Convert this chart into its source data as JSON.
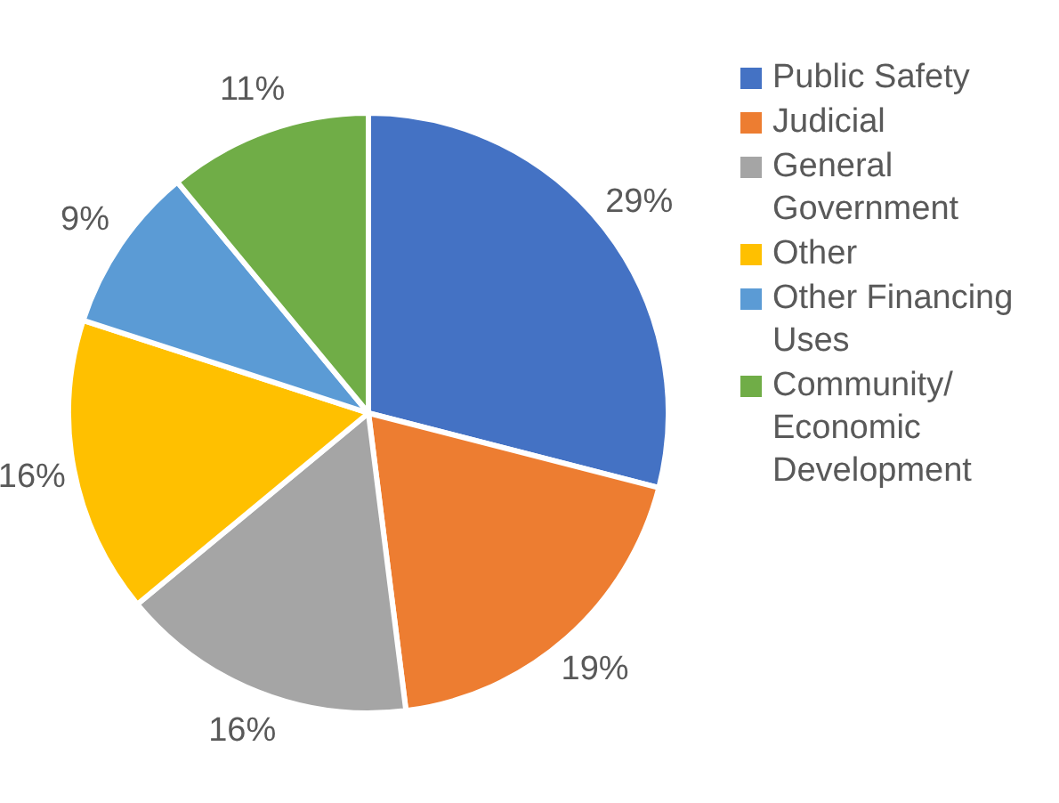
{
  "chart_data": {
    "type": "pie",
    "categories": [
      "Public Safety",
      "Judicial",
      "General Government",
      "Other",
      "Other Financing Uses",
      "Community/ Economic Development"
    ],
    "values": [
      29,
      19,
      16,
      16,
      9,
      11
    ],
    "colors": [
      "#4472c4",
      "#ed7d31",
      "#a5a5a5",
      "#ffc000",
      "#5b9bd5",
      "#70ad47"
    ],
    "value_labels": [
      "29%",
      "19%",
      "16%",
      "16%",
      "9%",
      "11%"
    ],
    "legend": "right"
  }
}
